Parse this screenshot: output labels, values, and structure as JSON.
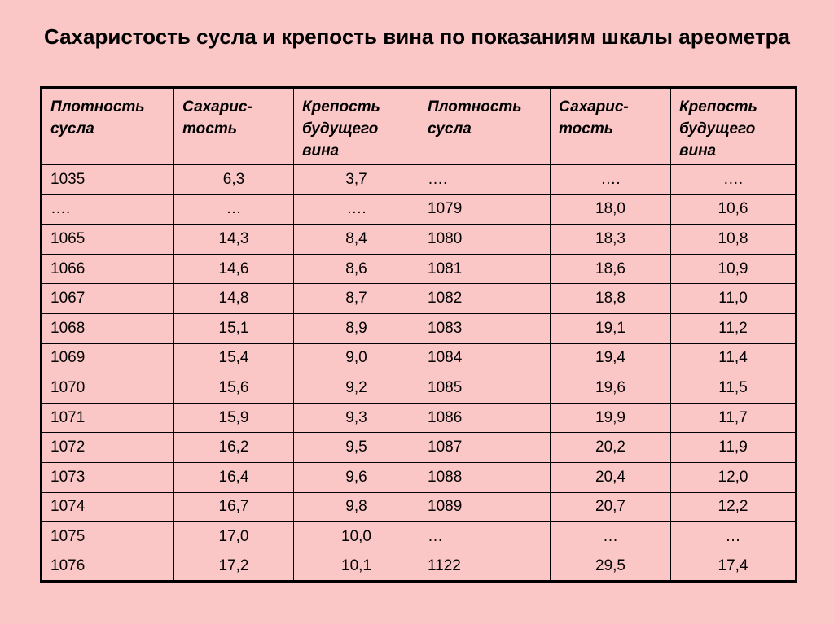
{
  "title": "Сахаристость сусла и крепость вина по показаниям шкалы ареометра",
  "headers": [
    "Плотность сусла",
    "Сахарис-\nтость",
    "Крепость будущего вина",
    "Плотность сусла",
    "Сахарис-\nтость",
    "Крепость будущего вина"
  ],
  "rows": [
    [
      "1035",
      "6,3",
      "3,7",
      "….",
      "….",
      "…."
    ],
    [
      "….",
      "…",
      "….",
      "1079",
      "18,0",
      "10,6"
    ],
    [
      "1065",
      "14,3",
      "8,4",
      "1080",
      "18,3",
      "10,8"
    ],
    [
      "1066",
      "14,6",
      "8,6",
      "1081",
      "18,6",
      "10,9"
    ],
    [
      "1067",
      "14,8",
      "8,7",
      "1082",
      "18,8",
      "11,0"
    ],
    [
      "1068",
      "15,1",
      "8,9",
      "1083",
      "19,1",
      "11,2"
    ],
    [
      "1069",
      "15,4",
      "9,0",
      "1084",
      "19,4",
      "11,4"
    ],
    [
      "1070",
      "15,6",
      "9,2",
      "1085",
      "19,6",
      "11,5"
    ],
    [
      "1071",
      "15,9",
      "9,3",
      "1086",
      "19,9",
      "11,7"
    ],
    [
      "1072",
      "16,2",
      "9,5",
      "1087",
      "20,2",
      "11,9"
    ],
    [
      "1073",
      "16,4",
      "9,6",
      "1088",
      "20,4",
      "12,0"
    ],
    [
      "1074",
      "16,7",
      "9,8",
      "1089",
      "20,7",
      "12,2"
    ],
    [
      "1075",
      "17,0",
      "10,0",
      "…",
      "…",
      "…"
    ],
    [
      "1076",
      "17,2",
      "10,1",
      "1122",
      "29,5",
      "17,4"
    ]
  ],
  "colors": {
    "background": "#fbc6c6",
    "border": "#000000"
  }
}
